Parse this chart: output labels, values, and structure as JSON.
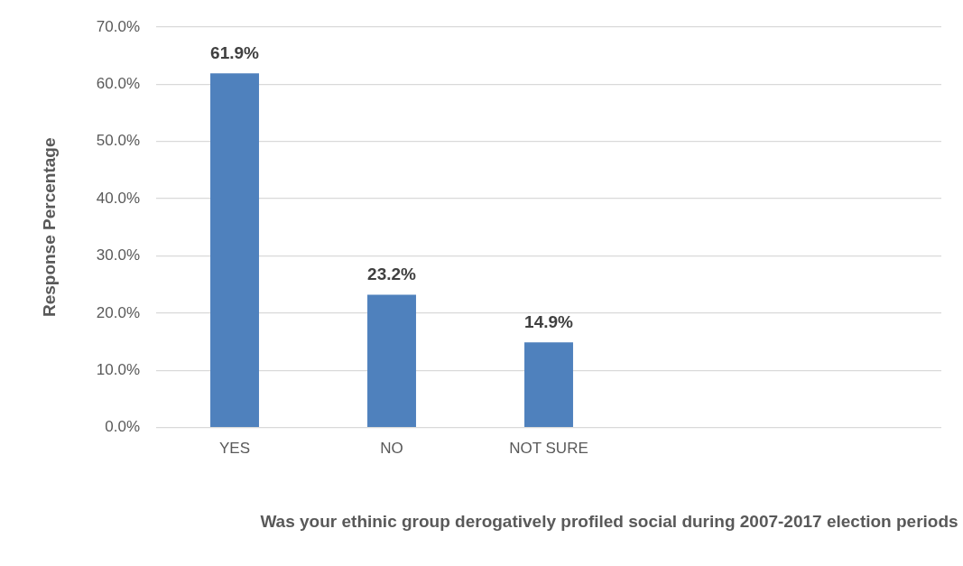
{
  "chart_data": {
    "type": "bar",
    "xlabel": "Was your ethinic group derogatively profiled social during 2007-2017 election periods",
    "ylabel": "Response Percentage",
    "categories": [
      "YES",
      "NO",
      "NOT SURE",
      null,
      null
    ],
    "values": [
      61.9,
      23.2,
      14.9,
      null,
      null
    ],
    "value_labels": [
      "61.9%",
      "23.2%",
      "14.9%",
      null,
      null
    ],
    "color": "#4f81bd",
    "ylim": [
      0,
      70
    ],
    "yticks": [
      {
        "value": 0,
        "label": "0.0%"
      },
      {
        "value": 10,
        "label": "10.0%"
      },
      {
        "value": 20,
        "label": "20.0%"
      },
      {
        "value": 30,
        "label": "30.0%"
      },
      {
        "value": 40,
        "label": "40.0%"
      },
      {
        "value": 50,
        "label": "50.0%"
      },
      {
        "value": 60,
        "label": "60.0%"
      },
      {
        "value": 70,
        "label": "70.0%"
      }
    ],
    "grid": "y",
    "legend": false
  }
}
